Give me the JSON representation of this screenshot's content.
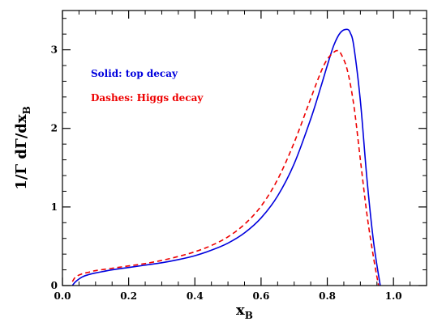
{
  "chart_data": {
    "type": "line",
    "title": "",
    "xlabel": "x",
    "xlabel_sub": "B",
    "ylabel": "1/Γ dΓ/dx",
    "ylabel_sub": "B",
    "xlim": [
      0.0,
      1.1
    ],
    "ylim": [
      0,
      3.5
    ],
    "xticks": [
      "0.0",
      "0.2",
      "0.4",
      "0.6",
      "0.8",
      "1.0"
    ],
    "xtick_values": [
      0.0,
      0.2,
      0.4,
      0.6,
      0.8,
      1.0
    ],
    "yticks": [
      "0",
      "1",
      "2",
      "3"
    ],
    "ytick_values": [
      0,
      1,
      2,
      3
    ],
    "grid": false,
    "legend_placement": "top-left",
    "series": [
      {
        "name": "Solid: top decay",
        "color": "#0000dd",
        "style": "solid",
        "x": [
          0.03,
          0.04,
          0.06,
          0.08,
          0.1,
          0.15,
          0.2,
          0.25,
          0.3,
          0.35,
          0.4,
          0.45,
          0.5,
          0.55,
          0.6,
          0.65,
          0.7,
          0.75,
          0.78,
          0.8,
          0.82,
          0.84,
          0.86,
          0.87,
          0.88,
          0.9,
          0.92,
          0.94,
          0.96
        ],
        "y": [
          0.0,
          0.05,
          0.11,
          0.14,
          0.16,
          0.2,
          0.23,
          0.26,
          0.29,
          0.33,
          0.38,
          0.45,
          0.54,
          0.67,
          0.86,
          1.14,
          1.55,
          2.12,
          2.52,
          2.8,
          3.06,
          3.22,
          3.26,
          3.21,
          3.05,
          2.35,
          1.35,
          0.55,
          0.0
        ]
      },
      {
        "name": "Dashes: Higgs decay",
        "color": "#ee0000",
        "style": "dashed",
        "x": [
          0.03,
          0.04,
          0.06,
          0.08,
          0.1,
          0.15,
          0.2,
          0.25,
          0.3,
          0.35,
          0.4,
          0.45,
          0.5,
          0.55,
          0.6,
          0.65,
          0.7,
          0.75,
          0.78,
          0.8,
          0.82,
          0.83,
          0.84,
          0.86,
          0.88,
          0.9,
          0.92,
          0.94,
          0.955
        ],
        "y": [
          0.05,
          0.11,
          0.15,
          0.17,
          0.19,
          0.22,
          0.25,
          0.28,
          0.32,
          0.37,
          0.43,
          0.51,
          0.62,
          0.78,
          1.01,
          1.35,
          1.82,
          2.38,
          2.71,
          2.88,
          2.97,
          2.99,
          2.96,
          2.75,
          2.3,
          1.6,
          0.9,
          0.35,
          0.0
        ]
      }
    ]
  }
}
